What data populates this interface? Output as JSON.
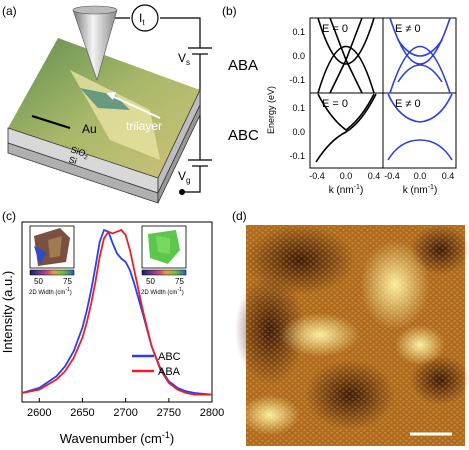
{
  "panel_labels": {
    "a": "(a)",
    "b": "(b)",
    "c": "(c)",
    "d": "(d)"
  },
  "panel_a": {
    "current_label": "I",
    "current_sub": "t",
    "vs_label": "V",
    "vs_sub": "s",
    "vg_label": "V",
    "vg_sub": "g",
    "au_label": "Au",
    "trilayer_label": "trilayer",
    "sio2_label": "SiO",
    "sio2_sub": "2",
    "si_label": "Si"
  },
  "panel_b": {
    "row_labels": [
      "ABA",
      "ABC"
    ],
    "ylabel": "Energy (eV)",
    "yticks": [
      "0.1",
      "0.0",
      "-0.1",
      "0.1",
      "0.0",
      "-0.1"
    ],
    "xticks": [
      "-0.4",
      "0.0",
      "0.4",
      "-0.4",
      "0.0",
      "0.4"
    ],
    "xlabel_left": "k (nm",
    "xlabel_right": "k (nm",
    "xlabel_sup": "-1",
    "xlabel_close": ")",
    "subplot_titles": [
      "E = 0",
      "E ≠ 0",
      "E = 0",
      "E ≠ 0"
    ],
    "colors": {
      "zero_field": "#000000",
      "field": "#2a3fe0"
    }
  },
  "panel_c": {
    "ylabel": "Intensity (a.u.)",
    "xlabel": "Wavenumber (cm",
    "xlabel_sup": "-1",
    "xlabel_close": ")",
    "xticks": [
      "2600",
      "2650",
      "2700",
      "2750",
      "2800"
    ],
    "legend": [
      "ABC",
      "ABA"
    ],
    "inset_ticks": [
      "50",
      "75"
    ],
    "inset_label": "2D Width (cm",
    "inset_label_sup": "-1",
    "inset_label_close": ")",
    "colors": {
      "ABC": "#2a3ef0",
      "ABA": "#e8202a"
    }
  },
  "chart_data": [
    {
      "type": "line",
      "panel": "c",
      "xlabel": "Wavenumber (cm-1)",
      "ylabel": "Intensity (a.u.)",
      "xlim": [
        2580,
        2800
      ],
      "series": [
        {
          "name": "ABC",
          "x": [
            2580,
            2600,
            2620,
            2630,
            2640,
            2650,
            2655,
            2660,
            2665,
            2670,
            2675,
            2680,
            2685,
            2690,
            2695,
            2700,
            2705,
            2710,
            2720,
            2730,
            2740,
            2750,
            2760,
            2770,
            2780,
            2800
          ],
          "y": [
            0.03,
            0.06,
            0.13,
            0.19,
            0.28,
            0.42,
            0.52,
            0.64,
            0.78,
            0.93,
            1.0,
            0.99,
            0.92,
            0.86,
            0.83,
            0.81,
            0.76,
            0.68,
            0.5,
            0.31,
            0.18,
            0.1,
            0.06,
            0.04,
            0.03,
            0.02
          ]
        },
        {
          "name": "ABA",
          "x": [
            2580,
            2600,
            2620,
            2630,
            2640,
            2650,
            2655,
            2660,
            2665,
            2670,
            2675,
            2680,
            2685,
            2690,
            2695,
            2700,
            2705,
            2710,
            2720,
            2730,
            2740,
            2750,
            2760,
            2770,
            2780,
            2800
          ],
          "y": [
            0.03,
            0.05,
            0.11,
            0.16,
            0.24,
            0.36,
            0.45,
            0.56,
            0.69,
            0.84,
            0.95,
            0.99,
            0.98,
            0.99,
            1.0,
            0.97,
            0.88,
            0.76,
            0.52,
            0.31,
            0.17,
            0.09,
            0.05,
            0.03,
            0.02,
            0.02
          ]
        }
      ]
    }
  ]
}
